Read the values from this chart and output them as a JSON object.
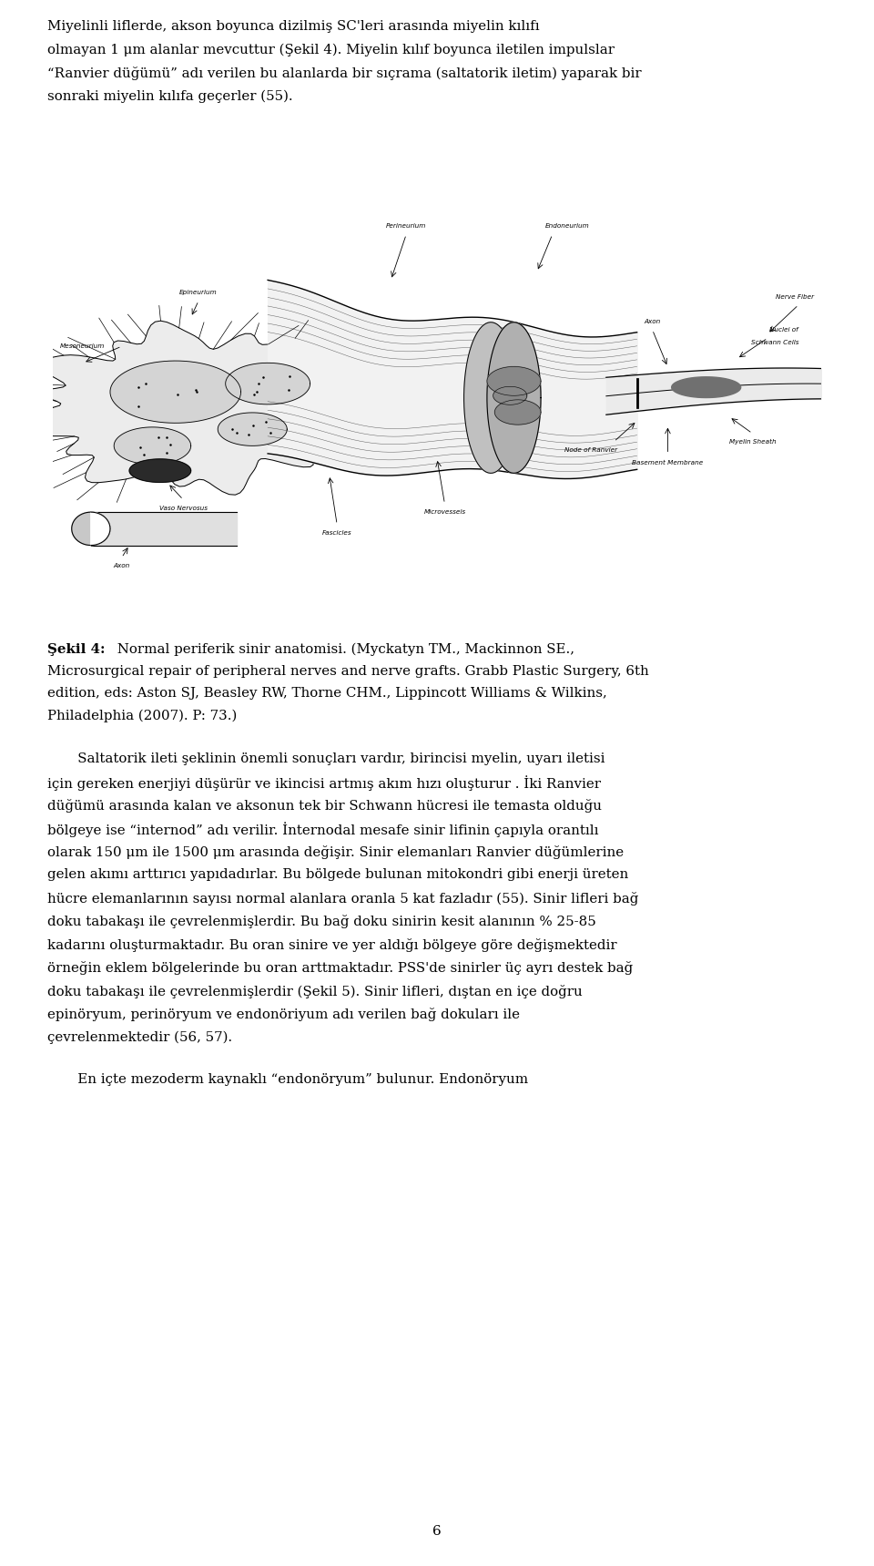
{
  "background_color": "#ffffff",
  "page_width": 9.6,
  "page_height": 17.19,
  "dpi": 100,
  "text_color": "#000000",
  "body_fs": 10.8,
  "caption_fs": 10.8,
  "page_number": "6",
  "p1_lines": [
    "Miyelinli liflerde, akson boyunca dizilmiş SC'leri arasında miyelin kılıfı",
    "olmayan 1 μm alanlar mevcuttur (Şekil 4). Miyelin kılıf boyunca iletilen impulslar",
    "“Ranvier düğümü” adı verilen bu alanlarda bir sıçrama (saltatorik iletim) yaparak bir",
    "sonraki miyelin kılıfa geçerler (55)."
  ],
  "caption_bold": "Şekil 4:",
  "caption_rest_lines": [
    " Normal periferik sinir anatomisi. (Myckatyn TM., Mackinnon SE.,",
    "Microsurgical repair of peripheral nerves and nerve grafts. Grabb Plastic Surgery, 6th",
    "edition, eds: Aston SJ, Beasley RW, Thorne CHM., Lippincott Williams & Wilkins,",
    "Philadelphia (2007). P: 73.)"
  ],
  "p2_lines": [
    "       Saltatorik ileti şeklinin önemli sonuçları vardır, birincisi myelin, uyarı iletisi",
    "için gereken enerjiyi düşürür ve ikincisi artmış akım hızı oluşturur . İki Ranvier",
    "düğümü arasında kalan ve aksonun tek bir Schwann hücresi ile temasta olduğu",
    "bölgeye ise “internod” adı verilir. İnternodal mesafe sinir lifinin çapıyla orantılı",
    "olarak 150 μm ile 1500 μm arasında değişir. Sinir elemanları Ranvier düğümlerine",
    "gelen akımı arttırıcı yapıdadırlar. Bu bölgede bulunan mitokondri gibi enerji üreten",
    "hücre elemanlarının sayısı normal alanlara oranla 5 kat fazladır (55). Sinir lifleri bağ",
    "doku tabakaşı ile çevrelenmişlerdir. Bu bağ doku sinirin kesit alanının % 25-85",
    "kadarını oluşturmaktadır. Bu oran sinire ve yer aldığı bölgeye göre değişmektedir",
    "örneğin eklem bölgelerinde bu oran arttmaktadır. PSS'de sinirler üç ayrı destek bağ",
    "doku tabakaşı ile çevrelenmişlerdir (Şekil 5). Sinir lifleri, dıştan en içe doğru",
    "epinöryum, perinöryum ve endonöriyum adı verilen bağ dokuları ile",
    "çevrelenmektedir (56, 57)."
  ],
  "p3_lines": [
    "       En içte mezoderm kaynaklı “endonöryum” bulunur. Endonöryum"
  ]
}
